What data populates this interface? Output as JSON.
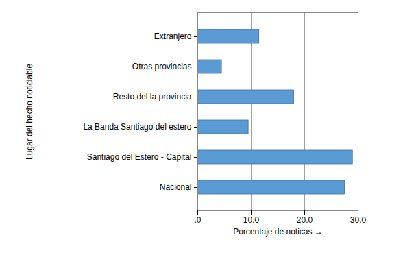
{
  "chart_data": {
    "type": "bar",
    "orientation": "horizontal",
    "x_label": "Porcentaje de noticas",
    "y_label": "Lugar del hecho noticiable",
    "categories": [
      "Extranjero",
      "Otras provincias",
      "Resto del la provincia",
      "La Banda Santiago del estero",
      "Santiago del Estero - Capital",
      "Nacional"
    ],
    "values": [
      11.5,
      4.5,
      18.0,
      9.5,
      29.0,
      27.5
    ],
    "color": "#5b9bd5",
    "xlim": [
      0,
      30
    ],
    "xticks": [
      {
        "value": 0,
        "label": ".0"
      },
      {
        "value": 10,
        "label": "10.0"
      },
      {
        "value": 20,
        "label": "20.0"
      },
      {
        "value": 30,
        "label": "30.0"
      }
    ],
    "grid": true
  }
}
